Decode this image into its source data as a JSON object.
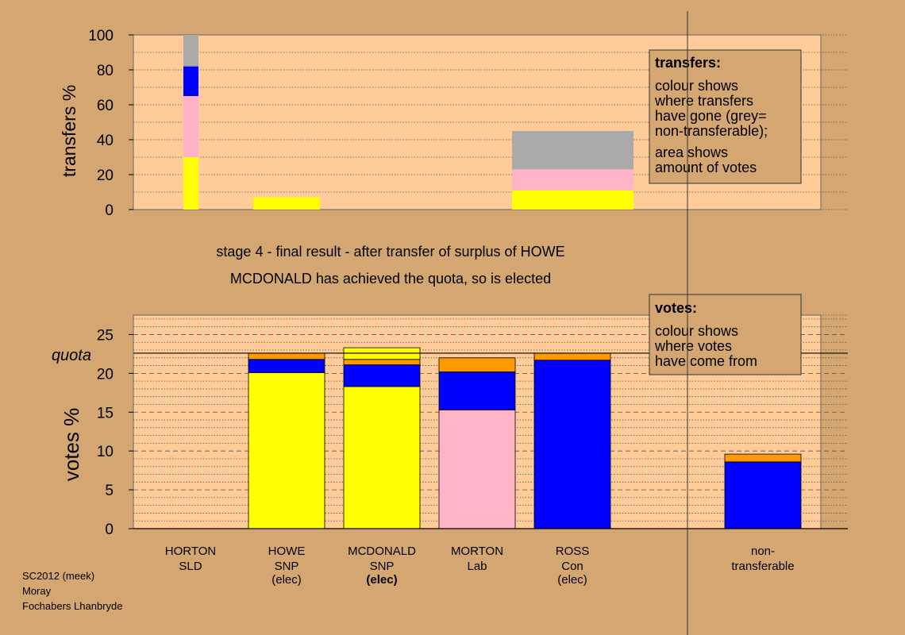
{
  "stage_title": "stage 4 - final result - after transfer of surplus of HOWE",
  "stage_subtitle": "MCDONALD has achieved the quota, so is elected",
  "footer": {
    "line1": "SC2012 (meek)",
    "line2": "Moray",
    "line3": "Fochabers Lhanbryde"
  },
  "colors": {
    "background": "#d4a672",
    "plot_bg": "#ffcc99",
    "SNP": "#ffff00",
    "Con": "#0000ff",
    "Lab": "#ffb3c6",
    "SLD": "#ff9900",
    "nontransferable": "#aaaaaa",
    "quota_line": "#000000"
  },
  "chart_data": [
    {
      "id": "transfers",
      "type": "bar",
      "ylabel": "transfers %",
      "ylim": [
        0,
        100
      ],
      "yticks": [
        0,
        20,
        40,
        60,
        80,
        100
      ],
      "legend": {
        "title": "transfers:",
        "lines": [
          "colour shows",
          "where transfers",
          "have gone (grey=",
          "non-transferable);",
          "area shows",
          "amount of votes"
        ]
      },
      "bars": [
        {
          "from": "HORTON",
          "segments": [
            {
              "party": "SNP",
              "value": 30
            },
            {
              "party": "Lab",
              "value": 35
            },
            {
              "party": "Con",
              "value": 17
            },
            {
              "party": "nontransferable",
              "value": 18
            }
          ]
        },
        {
          "from": "HOWE",
          "segments": [
            {
              "party": "SNP",
              "value": 7
            }
          ]
        },
        {
          "from": "MORTON",
          "segments": [
            {
              "party": "SNP",
              "value": 11
            },
            {
              "party": "Lab",
              "value": 12
            },
            {
              "party": "nontransferable",
              "value": 22
            }
          ]
        }
      ]
    },
    {
      "id": "votes",
      "type": "bar",
      "ylabel": "votes %",
      "ylim": [
        0,
        27.5
      ],
      "yticks": [
        0,
        5,
        10,
        15,
        20,
        25
      ],
      "quota": 22.6,
      "quota_label": "quota",
      "legend": {
        "title": "votes:",
        "lines": [
          "colour shows",
          "where votes",
          "have come from"
        ]
      },
      "categories": [
        {
          "name": "HORTON",
          "party": "SLD",
          "status": "",
          "status_bold": false,
          "segments": []
        },
        {
          "name": "HOWE",
          "party": "SNP",
          "status": "(elec)",
          "status_bold": false,
          "segments": [
            {
              "party": "SNP",
              "value": 20.1
            },
            {
              "party": "Con",
              "value": 1.7
            },
            {
              "party": "SLD",
              "value": 0.8
            }
          ]
        },
        {
          "name": "MCDONALD",
          "party": "SNP",
          "status": "(elec)",
          "status_bold": true,
          "segments": [
            {
              "party": "SNP",
              "value": 18.3
            },
            {
              "party": "Con",
              "value": 2.8
            },
            {
              "party": "SLD",
              "value": 0.7
            },
            {
              "party": "SNP",
              "value": 1.5
            }
          ]
        },
        {
          "name": "MORTON",
          "party": "Lab",
          "status": "",
          "status_bold": false,
          "segments": [
            {
              "party": "Lab",
              "value": 15.3
            },
            {
              "party": "Con",
              "value": 4.9
            },
            {
              "party": "SLD",
              "value": 1.8
            }
          ]
        },
        {
          "name": "ROSS",
          "party": "Con",
          "status": "(elec)",
          "status_bold": false,
          "segments": [
            {
              "party": "Con",
              "value": 21.7
            },
            {
              "party": "SLD",
              "value": 0.9
            }
          ]
        },
        {
          "name": "non-",
          "party": "transferable",
          "status": "",
          "status_bold": false,
          "segments": [
            {
              "party": "Con",
              "value": 8.6
            },
            {
              "party": "SLD",
              "value": 1.0
            }
          ]
        }
      ]
    }
  ]
}
